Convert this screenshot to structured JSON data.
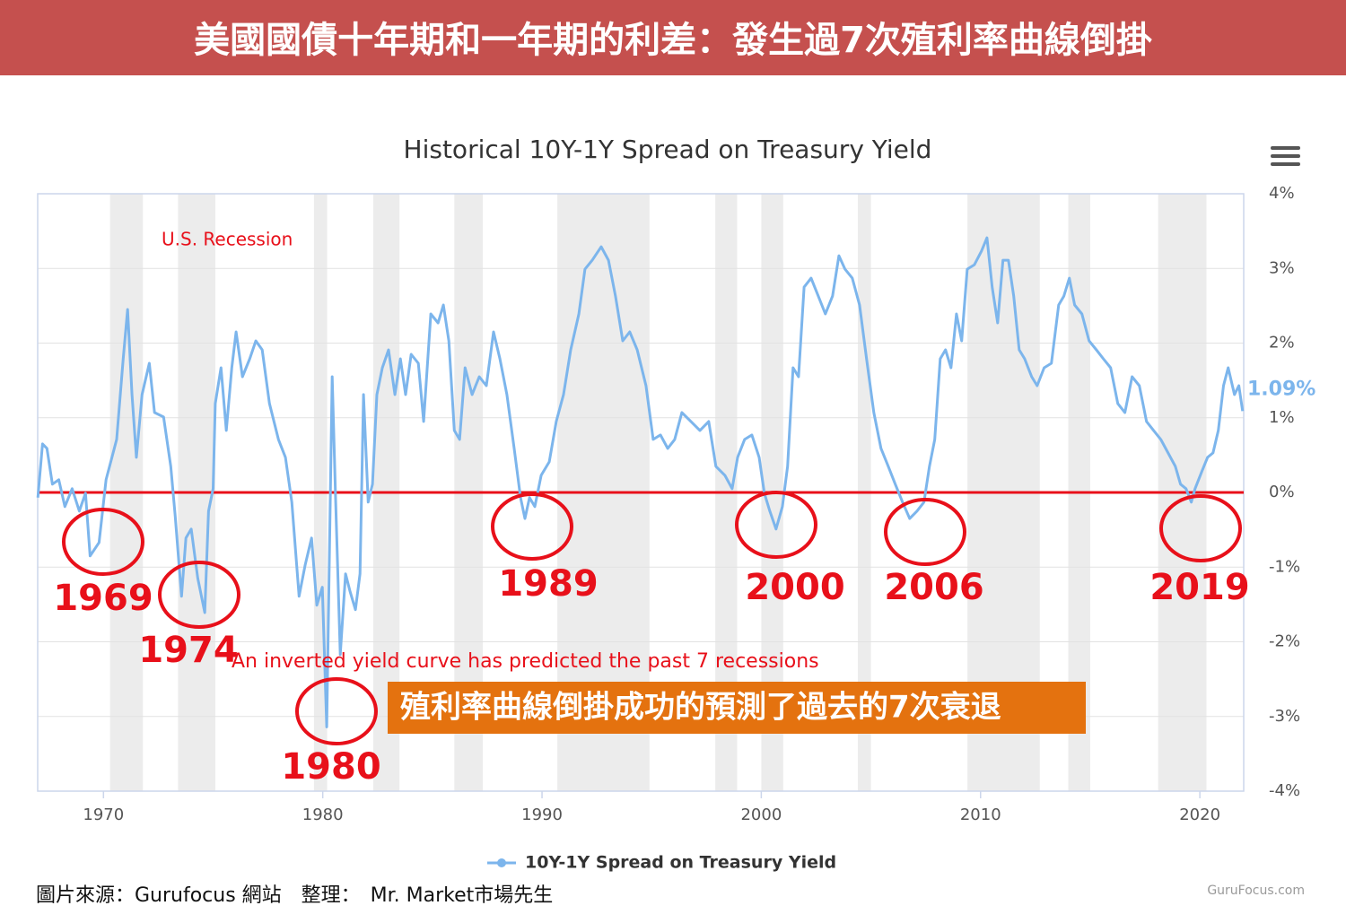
{
  "header": {
    "title": "美國國債十年期和一年期的利差：發生過7次殖利率曲線倒掛"
  },
  "chart_data": {
    "type": "line",
    "title": "Historical 10Y-1Y Spread on Treasury Yield",
    "x": [
      1967.01,
      1967.22,
      1967.42,
      1967.67,
      1967.96,
      1968.24,
      1968.57,
      1968.9,
      1969.18,
      1969.39,
      1969.8,
      1970.12,
      1970.6,
      1970.9,
      1971.1,
      1971.3,
      1971.5,
      1971.76,
      1972.09,
      1972.33,
      1972.74,
      1973.07,
      1973.27,
      1973.56,
      1973.76,
      1974.0,
      1974.3,
      1974.62,
      1974.79,
      1975.0,
      1975.1,
      1975.36,
      1975.6,
      1975.85,
      1976.05,
      1976.34,
      1976.67,
      1976.95,
      1977.24,
      1977.57,
      1977.98,
      1978.3,
      1978.59,
      1978.92,
      1979.2,
      1979.49,
      1979.73,
      1979.98,
      1980.18,
      1980.43,
      1980.59,
      1980.8,
      1981.04,
      1981.25,
      1981.49,
      1981.7,
      1981.86,
      1982.07,
      1982.27,
      1982.47,
      1982.72,
      1983.0,
      1983.29,
      1983.54,
      1983.78,
      1984.03,
      1984.36,
      1984.6,
      1984.93,
      1985.26,
      1985.5,
      1985.75,
      1986.0,
      1986.24,
      1986.49,
      1986.81,
      1987.14,
      1987.46,
      1987.79,
      1988.08,
      1988.4,
      1988.73,
      1989.02,
      1989.22,
      1989.43,
      1989.67,
      1989.96,
      1990.33,
      1990.65,
      1990.98,
      1991.31,
      1991.68,
      1991.96,
      1992.29,
      1992.7,
      1993.03,
      1993.35,
      1993.68,
      1994.0,
      1994.34,
      1994.74,
      1995.07,
      1995.4,
      1995.73,
      1996.05,
      1996.38,
      1996.79,
      1997.2,
      1997.6,
      1997.93,
      1998.34,
      1998.67,
      1998.92,
      1999.24,
      1999.57,
      1999.9,
      2000.14,
      2000.39,
      2000.67,
      2000.96,
      2001.2,
      2001.45,
      2001.7,
      2001.95,
      2002.27,
      2002.6,
      2002.92,
      2003.25,
      2003.54,
      2003.82,
      2004.15,
      2004.48,
      2004.8,
      2005.13,
      2005.46,
      2005.79,
      2006.11,
      2006.44,
      2006.77,
      2007.1,
      2007.42,
      2007.67,
      2007.91,
      2008.16,
      2008.4,
      2008.65,
      2008.9,
      2009.14,
      2009.39,
      2009.72,
      2010.04,
      2010.29,
      2010.53,
      2010.78,
      2011.02,
      2011.27,
      2011.51,
      2011.76,
      2012.01,
      2012.33,
      2012.58,
      2012.9,
      2013.23,
      2013.56,
      2013.8,
      2014.05,
      2014.29,
      2014.62,
      2014.95,
      2015.28,
      2015.6,
      2015.93,
      2016.26,
      2016.58,
      2016.91,
      2017.24,
      2017.57,
      2017.89,
      2018.22,
      2018.55,
      2018.88,
      2019.12,
      2019.37,
      2019.61,
      2019.78,
      2020.1,
      2020.35,
      2020.6,
      2020.84,
      2021.08,
      2021.29,
      2021.58,
      2021.78,
      2021.95
    ],
    "series": [
      {
        "name": "10Y-1Y Spread on Treasury Yield",
        "color": "#7cb5ec",
        "values": [
          -0.07,
          0.65,
          0.59,
          0.11,
          0.17,
          -0.19,
          0.05,
          -0.25,
          -0.01,
          -0.85,
          -0.67,
          0.17,
          0.71,
          1.79,
          2.45,
          1.31,
          0.47,
          1.31,
          1.73,
          1.07,
          1.01,
          0.35,
          -0.31,
          -1.39,
          -0.61,
          -0.49,
          -1.15,
          -1.61,
          -0.25,
          0.05,
          1.19,
          1.67,
          0.83,
          1.67,
          2.15,
          1.55,
          1.79,
          2.03,
          1.91,
          1.19,
          0.71,
          0.47,
          -0.13,
          -1.39,
          -0.97,
          -0.61,
          -1.51,
          -1.27,
          -3.14,
          1.55,
          -0.13,
          -2.17,
          -1.09,
          -1.33,
          -1.57,
          -1.09,
          1.31,
          -0.13,
          0.11,
          1.31,
          1.67,
          1.91,
          1.31,
          1.79,
          1.31,
          1.85,
          1.73,
          0.95,
          2.39,
          2.27,
          2.51,
          2.03,
          0.83,
          0.71,
          1.67,
          1.31,
          1.55,
          1.43,
          2.15,
          1.79,
          1.31,
          0.59,
          -0.07,
          -0.35,
          -0.07,
          -0.19,
          0.23,
          0.41,
          0.95,
          1.31,
          1.91,
          2.39,
          2.99,
          3.11,
          3.29,
          3.11,
          2.63,
          2.03,
          2.15,
          1.91,
          1.43,
          0.71,
          0.77,
          0.59,
          0.71,
          1.07,
          0.95,
          0.83,
          0.95,
          0.35,
          0.23,
          0.05,
          0.47,
          0.71,
          0.77,
          0.47,
          -0.01,
          -0.25,
          -0.49,
          -0.19,
          0.35,
          1.67,
          1.55,
          2.75,
          2.87,
          2.63,
          2.39,
          2.63,
          3.17,
          2.99,
          2.87,
          2.51,
          1.79,
          1.07,
          0.59,
          0.35,
          0.11,
          -0.13,
          -0.35,
          -0.25,
          -0.13,
          0.35,
          0.71,
          1.79,
          1.91,
          1.67,
          2.39,
          2.03,
          2.99,
          3.05,
          3.23,
          3.41,
          2.75,
          2.27,
          3.11,
          3.11,
          2.63,
          1.91,
          1.79,
          1.55,
          1.43,
          1.67,
          1.73,
          2.51,
          2.63,
          2.87,
          2.51,
          2.39,
          2.03,
          1.91,
          1.79,
          1.67,
          1.19,
          1.07,
          1.55,
          1.43,
          0.95,
          0.83,
          0.71,
          0.53,
          0.35,
          0.11,
          0.05,
          -0.13,
          0.05,
          0.29,
          0.47,
          0.53,
          0.83,
          1.43,
          1.67,
          1.31,
          1.43,
          1.09
        ]
      }
    ],
    "end_label": "1.09%",
    "xlim": [
      1967,
      2022
    ],
    "xticks": [
      1970,
      1980,
      1990,
      2000,
      2010,
      2020
    ],
    "ylim": [
      -4,
      4
    ],
    "yticks": [
      {
        "value": -4,
        "label": "-4%"
      },
      {
        "value": -3,
        "label": "-3%"
      },
      {
        "value": -2,
        "label": "-2%"
      },
      {
        "value": -1,
        "label": "-1%"
      },
      {
        "value": 0,
        "label": "0%"
      },
      {
        "value": 1,
        "label": "1%"
      },
      {
        "value": 2,
        "label": "2%"
      },
      {
        "value": 3,
        "label": "3%"
      },
      {
        "value": 4,
        "label": "4%"
      }
    ],
    "grid": true,
    "zero_line": {
      "value": 0,
      "color": "#e8101a"
    },
    "recession_bands": [
      [
        1970.3,
        1971.8
      ],
      [
        1973.4,
        1975.1
      ],
      [
        1979.6,
        1980.2
      ],
      [
        1982.3,
        1983.5
      ],
      [
        1986.0,
        1987.3
      ],
      [
        1990.7,
        1994.9
      ],
      [
        1997.9,
        1998.9
      ],
      [
        2000.0,
        2001.0
      ],
      [
        2004.4,
        2005.0
      ],
      [
        2009.4,
        2012.7
      ],
      [
        2014.0,
        2015.0
      ],
      [
        2018.1,
        2020.3
      ]
    ],
    "recession_label": "U.S. Recession",
    "note": "An inverted yield curve has predicted the past 7 recessions",
    "callout": "殖利率曲線倒掛成功的預測了過去的7次衰退",
    "inversions": [
      "1969",
      "1974",
      "1980",
      "1989",
      "2000",
      "2006",
      "2019"
    ]
  },
  "footer": {
    "source": "圖片來源：Gurufocus 網站　整理：　Mr. Market市場先生",
    "watermark": "GuruFocus.com"
  }
}
